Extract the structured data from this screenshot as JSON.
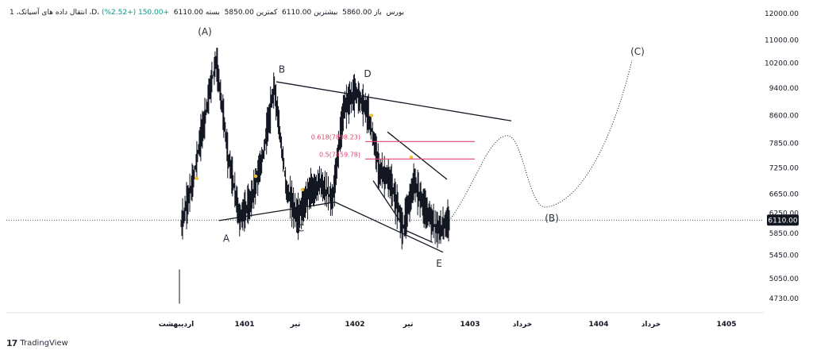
{
  "header": {
    "symbol": "انتقال داده های آسیاتک، 1 ،D، بورس",
    "open": "باز 5860.00",
    "high": "بیشترین 6110.00",
    "low": "کمترین 5850.00",
    "close": "بسته 6110.00",
    "change": "+150.00 (+2.52%)"
  },
  "branding": {
    "name": "TradingView"
  },
  "chart_data": {
    "type": "line",
    "y_scale": "log",
    "ylim": [
      4500,
      12300
    ],
    "y_ticks": [
      12000,
      11000,
      10200,
      9400,
      8600,
      7850,
      7250,
      6650,
      6250,
      5850,
      5450,
      5050,
      4730
    ],
    "y_tick_labels": [
      "12000.00",
      "11000.00",
      "10200.00",
      "9400.00",
      "8600.00",
      "7850.00",
      "7250.00",
      "6650.00",
      "6250.00",
      "5850.00",
      "5450.00",
      "5050.00",
      "4730.00"
    ],
    "x_ticks": [
      "اردیبهشت",
      "1401",
      "تیر",
      "1402",
      "تیر",
      "1403",
      "خرداد",
      "1404",
      "خرداد",
      "1405"
    ],
    "last_price": {
      "value": 6110,
      "label": "6110.00"
    },
    "price_path": {
      "approx_daily_close": [
        6000,
        6900,
        8500,
        10300,
        7600,
        6150,
        6500,
        7500,
        9400,
        6800,
        6150,
        6700,
        6900,
        6500,
        8900,
        9300,
        8700,
        7200,
        6900,
        5950,
        6900,
        6300,
        5900,
        6110
      ]
    },
    "wave_labels": [
      {
        "text": "(A)",
        "value": 11300
      },
      {
        "text": "A",
        "value": 5750
      },
      {
        "text": "B",
        "value": 10000
      },
      {
        "text": "C",
        "value": 5950
      },
      {
        "text": "D",
        "value": 9850
      },
      {
        "text": "E",
        "value": 5300
      },
      {
        "text": "(B)",
        "value": 6150
      },
      {
        "text": "(C)",
        "value": 10600
      }
    ],
    "fibonacci": [
      {
        "label": "0.618(7898.23)",
        "value": 7898.23
      },
      {
        "label": "0.5(7459.78)",
        "value": 7459.78
      }
    ],
    "annotations": [
      "triangle trendlines A-C-E and B-D",
      "falling wedge after D",
      "dotted projection to (B) then (C)"
    ]
  }
}
